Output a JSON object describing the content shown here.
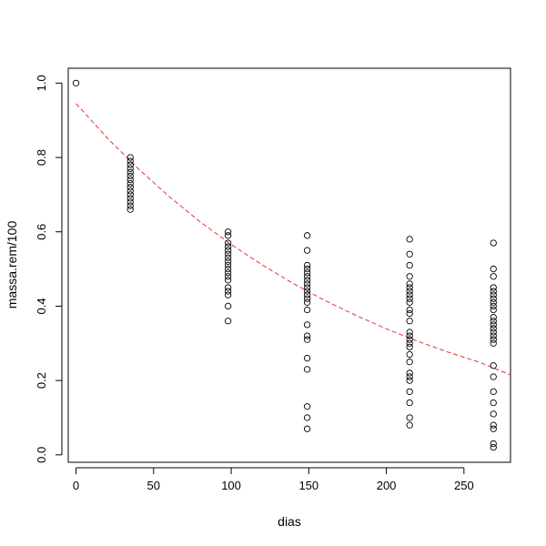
{
  "chart_data": {
    "type": "scatter",
    "xlabel": "dias",
    "ylabel": "massa.rem/100",
    "xlim": [
      -5,
      280
    ],
    "ylim": [
      -0.02,
      1.04
    ],
    "x_ticks": [
      0,
      50,
      100,
      150,
      200,
      250
    ],
    "y_ticks": [
      0.0,
      0.2,
      0.4,
      0.6,
      0.8,
      1.0
    ],
    "x_tick_labels": [
      "0",
      "50",
      "100",
      "150",
      "200",
      "250"
    ],
    "y_tick_labels": [
      "0.0",
      "0.2",
      "0.4",
      "0.6",
      "0.8",
      "1.0"
    ],
    "grid": false,
    "series": [
      {
        "marker": "open-circle",
        "color": "#000000",
        "points": [
          [
            0,
            1.0
          ],
          [
            35,
            0.8
          ],
          [
            35,
            0.79
          ],
          [
            35,
            0.78
          ],
          [
            35,
            0.77
          ],
          [
            35,
            0.76
          ],
          [
            35,
            0.75
          ],
          [
            35,
            0.74
          ],
          [
            35,
            0.73
          ],
          [
            35,
            0.72
          ],
          [
            35,
            0.71
          ],
          [
            35,
            0.7
          ],
          [
            35,
            0.69
          ],
          [
            35,
            0.68
          ],
          [
            35,
            0.67
          ],
          [
            35,
            0.66
          ],
          [
            98,
            0.6
          ],
          [
            98,
            0.59
          ],
          [
            98,
            0.57
          ],
          [
            98,
            0.56
          ],
          [
            98,
            0.55
          ],
          [
            98,
            0.54
          ],
          [
            98,
            0.53
          ],
          [
            98,
            0.52
          ],
          [
            98,
            0.51
          ],
          [
            98,
            0.5
          ],
          [
            98,
            0.49
          ],
          [
            98,
            0.48
          ],
          [
            98,
            0.47
          ],
          [
            98,
            0.45
          ],
          [
            98,
            0.44
          ],
          [
            98,
            0.43
          ],
          [
            98,
            0.4
          ],
          [
            98,
            0.36
          ],
          [
            149,
            0.59
          ],
          [
            149,
            0.55
          ],
          [
            149,
            0.51
          ],
          [
            149,
            0.5
          ],
          [
            149,
            0.49
          ],
          [
            149,
            0.48
          ],
          [
            149,
            0.47
          ],
          [
            149,
            0.46
          ],
          [
            149,
            0.45
          ],
          [
            149,
            0.44
          ],
          [
            149,
            0.43
          ],
          [
            149,
            0.42
          ],
          [
            149,
            0.41
          ],
          [
            149,
            0.39
          ],
          [
            149,
            0.35
          ],
          [
            149,
            0.32
          ],
          [
            149,
            0.31
          ],
          [
            149,
            0.26
          ],
          [
            149,
            0.23
          ],
          [
            149,
            0.13
          ],
          [
            149,
            0.1
          ],
          [
            149,
            0.07
          ],
          [
            215,
            0.58
          ],
          [
            215,
            0.54
          ],
          [
            215,
            0.51
          ],
          [
            215,
            0.48
          ],
          [
            215,
            0.46
          ],
          [
            215,
            0.45
          ],
          [
            215,
            0.44
          ],
          [
            215,
            0.43
          ],
          [
            215,
            0.42
          ],
          [
            215,
            0.41
          ],
          [
            215,
            0.39
          ],
          [
            215,
            0.38
          ],
          [
            215,
            0.36
          ],
          [
            215,
            0.33
          ],
          [
            215,
            0.32
          ],
          [
            215,
            0.31
          ],
          [
            215,
            0.3
          ],
          [
            215,
            0.29
          ],
          [
            215,
            0.27
          ],
          [
            215,
            0.25
          ],
          [
            215,
            0.22
          ],
          [
            215,
            0.21
          ],
          [
            215,
            0.2
          ],
          [
            215,
            0.17
          ],
          [
            215,
            0.14
          ],
          [
            215,
            0.1
          ],
          [
            215,
            0.08
          ],
          [
            269,
            0.57
          ],
          [
            269,
            0.5
          ],
          [
            269,
            0.48
          ],
          [
            269,
            0.45
          ],
          [
            269,
            0.44
          ],
          [
            269,
            0.43
          ],
          [
            269,
            0.42
          ],
          [
            269,
            0.41
          ],
          [
            269,
            0.4
          ],
          [
            269,
            0.39
          ],
          [
            269,
            0.37
          ],
          [
            269,
            0.36
          ],
          [
            269,
            0.35
          ],
          [
            269,
            0.34
          ],
          [
            269,
            0.33
          ],
          [
            269,
            0.32
          ],
          [
            269,
            0.31
          ],
          [
            269,
            0.3
          ],
          [
            269,
            0.24
          ],
          [
            269,
            0.21
          ],
          [
            269,
            0.17
          ],
          [
            269,
            0.14
          ],
          [
            269,
            0.11
          ],
          [
            269,
            0.08
          ],
          [
            269,
            0.07
          ],
          [
            269,
            0.03
          ],
          [
            269,
            0.02
          ]
        ]
      },
      {
        "type": "line",
        "style": "dashed",
        "color": "#e8313a",
        "x": [
          0,
          20,
          40,
          60,
          80,
          100,
          120,
          140,
          160,
          180,
          200,
          220,
          240,
          260,
          280
        ],
        "values": [
          0.945,
          0.853,
          0.77,
          0.695,
          0.627,
          0.566,
          0.511,
          0.461,
          0.416,
          0.376,
          0.339,
          0.306,
          0.276,
          0.249,
          0.215
        ]
      }
    ]
  }
}
